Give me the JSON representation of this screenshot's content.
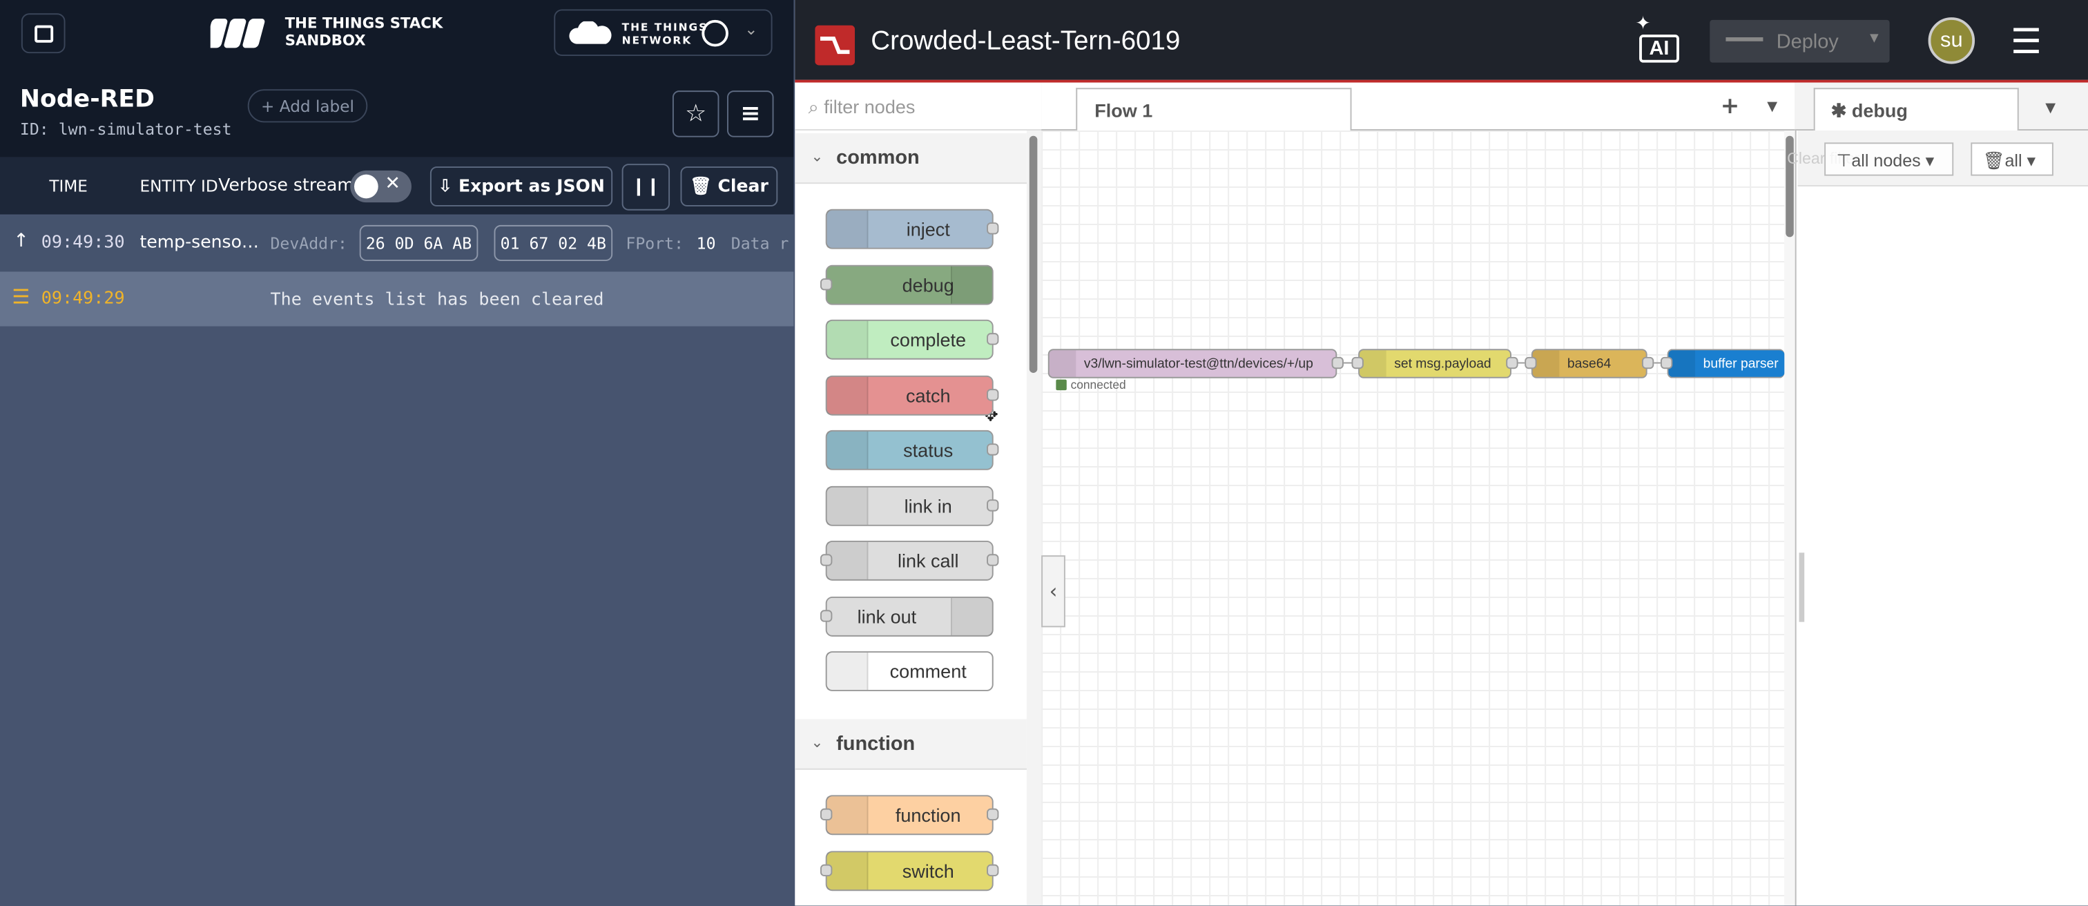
{
  "console": {
    "brand": [
      "THE THINGS STACK",
      "SANDBOX"
    ],
    "network": [
      "THE THINGS",
      "NETWORK"
    ],
    "title": "Node-RED",
    "id_label": "ID:",
    "id": "lwn-simulator-test",
    "add_label": "Add label",
    "columns": [
      "TIME",
      "ENTITY ID"
    ],
    "verbose": "Verbose stream",
    "export": "Export as JSON",
    "clear": "Clear",
    "events": [
      {
        "time": "09:49:30",
        "entity": "temp-senso…",
        "fields": [
          "DevAddr:",
          "26 0D 6A AB",
          "01 67 02 4B",
          "FPort:",
          "10",
          "Data r"
        ]
      },
      {
        "time": "09:49:29",
        "message": "The events list has been cleared"
      }
    ]
  },
  "nodered": {
    "project": "Crowded-Least-Tern-6019",
    "ai": "AI",
    "deploy": "Deploy",
    "user": "su",
    "filter": "filter nodes",
    "palette": [
      {
        "category": "common",
        "nodes": [
          {
            "label": "inject",
            "color": "#a6bbcf",
            "ports": "right"
          },
          {
            "label": "debug",
            "color": "#87a980",
            "ports": "left"
          },
          {
            "label": "complete",
            "color": "#c0edc0",
            "ports": "right"
          },
          {
            "label": "catch",
            "color": "#e49191",
            "ports": "right"
          },
          {
            "label": "status",
            "color": "#94c1d0",
            "ports": "right"
          },
          {
            "label": "link in",
            "color": "#dddddd",
            "ports": "right"
          },
          {
            "label": "link call",
            "color": "#dddddd",
            "ports": "both"
          },
          {
            "label": "link out",
            "color": "#dddddd",
            "ports": "left"
          },
          {
            "label": "comment",
            "color": "#ffffff",
            "ports": "none"
          }
        ]
      },
      {
        "category": "function",
        "nodes": [
          {
            "label": "function",
            "color": "#fdd0a2",
            "ports": "both"
          },
          {
            "label": "switch",
            "color": "#e2d96e",
            "ports": "both"
          }
        ]
      }
    ],
    "tab": "Flow 1",
    "flow": [
      {
        "label": "v3/lwn-simulator-test@ttn/devices/+/up",
        "color": "#d8bfd8"
      },
      {
        "label": "set msg.payload",
        "color": "#e2d96e"
      },
      {
        "label": "base64",
        "color": "#dbb55a"
      },
      {
        "label": "buffer parser",
        "color": "#1a7fd0"
      }
    ],
    "status": "connected",
    "sidebar": {
      "tab": "debug",
      "ghost": "Clear filter",
      "filter": "all nodes",
      "scope": "all"
    }
  }
}
